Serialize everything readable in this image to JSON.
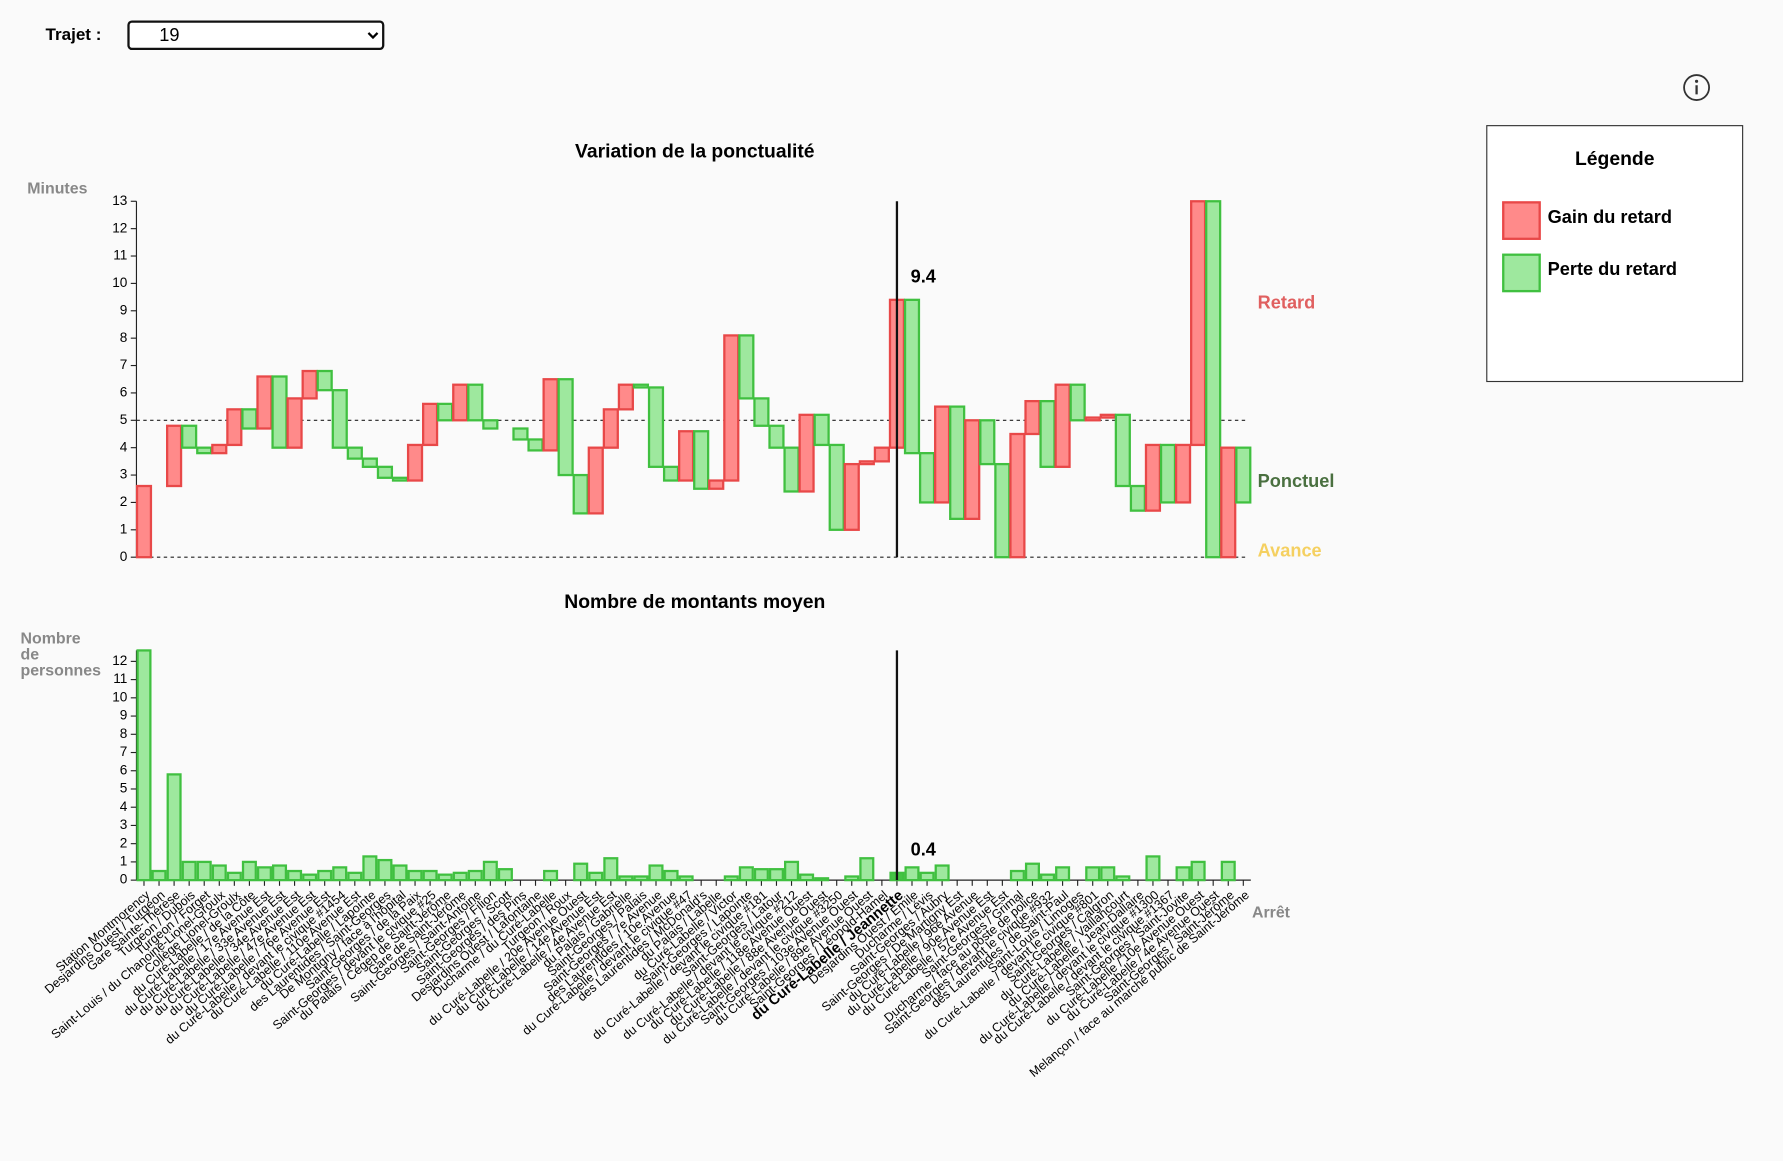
{
  "controls": {
    "label": "Trajet :",
    "selected": "19"
  },
  "legend": {
    "title": "Légende",
    "items": [
      {
        "name": "Gain du retard",
        "color": "#ff8a8a"
      },
      {
        "name": "Perte du retard",
        "color": "#9ee89e"
      }
    ]
  },
  "chart_data": [
    {
      "type": "waterfall",
      "title": "Variation de la ponctualité",
      "y_label": "Minutes",
      "ylim": [
        0,
        13
      ],
      "yticks": [
        0,
        1,
        2,
        3,
        4,
        5,
        6,
        7,
        8,
        9,
        10,
        11,
        12,
        13
      ],
      "reference_lines": [
        0,
        5
      ],
      "highlight_index": 50,
      "zone_labels": [
        {
          "text": "Retard",
          "color": "#e06060"
        },
        {
          "text": "Ponctuel",
          "color": "#4a7040"
        },
        {
          "text": "Avance",
          "color": "#f5d060"
        }
      ],
      "values": [
        2.6,
        2.6,
        4.8,
        4.0,
        3.8,
        4.1,
        5.4,
        4.7,
        6.6,
        4.0,
        5.8,
        6.8,
        6.1,
        4.0,
        3.6,
        3.3,
        2.9,
        2.8,
        4.1,
        5.6,
        5.0,
        6.3,
        5.0,
        4.7,
        4.7,
        4.3,
        3.9,
        6.5,
        3.0,
        1.6,
        4.0,
        5.4,
        6.3,
        6.2,
        3.3,
        2.8,
        4.6,
        2.5,
        2.8,
        8.1,
        5.8,
        4.8,
        4.0,
        2.4,
        5.2,
        4.1,
        1.0,
        3.4,
        3.5,
        4.0,
        9.4,
        3.8,
        2.0,
        5.5,
        1.4,
        5.0,
        3.4,
        0,
        4.5,
        5.7,
        3.3,
        6.3,
        5.0,
        5.1,
        5.2,
        2.6,
        1.7,
        4.1,
        2.0,
        4.1,
        13.0,
        0,
        4.0,
        2.0
      ]
    },
    {
      "type": "bar",
      "title": "Nombre de montants moyen",
      "y_label": "Nombre de personnes",
      "x_label": "Arrêt",
      "ylim": [
        0,
        12.6
      ],
      "yticks": [
        0,
        1,
        2,
        3,
        4,
        5,
        6,
        7,
        8,
        9,
        10,
        11,
        12
      ],
      "highlight_index": 50,
      "color": "#9ee89e",
      "highlight_color": "#44c444",
      "categories": [
        "Station Montmorency",
        "Desjardins Ouest / Turgeon",
        "Gare Sainte-Thérèse",
        "Turgeon / Dubois",
        "Turgeon / Forget",
        "Saint-Louis / du Chanoine-Lionel-Groulx",
        "Collège Lionel-Groulx",
        "du Curé-Labelle / de la Côte",
        "du Curé-Labelle / 17e Avenue Est",
        "du Curé-Labelle / 33e Avenue Est",
        "du Curé-Labelle / 34e Avenue Est",
        "du Curé-Labelle / 47e Avenue Est",
        "du Curé-Labelle / 76e Avenue Est",
        "du Curé-Labelle / devant le civique #1454",
        "du Curé-Labelle / 110e Avenue Est",
        "du Curé-Labelle / Lapointe",
        "des Laurentides / Saint-Georges",
        "De Montigny / face à l'hôpital",
        "Saint-Georges / de la Paix",
        "Saint-Georges / devant le civique #25",
        "du Palais / Cégep de Saint-Jérôme",
        "Gare de Saint-Jérôme",
        "Saint-Georges / Saint-Antoine",
        "Saint-Georges / Filion",
        "Saint-Georges / Scott",
        "Saint-Georges / des Pins",
        "Desjardins Ouest / Lafontaine",
        "Ducharme / du Curé-Labelle",
        "Turgeon / Roux",
        "du Curé-Labelle / 20e Avenue Ouest",
        "du Curé-Labelle / 14e Avenue Est",
        "du Curé-Labelle / 4e Avenue Est",
        "du Palais / Gabrielle",
        "Saint-Georges / Palais",
        "Saint-Georges / 7e Avenue",
        "des Laurentides / 10e Avenue",
        "du Curé-Labelle / devant le civique #47",
        "des Laurentides / McDonald's",
        "du Palais / Labelle",
        "du Curé-Labelle / Victor",
        "Saint-Georges / Lapointe",
        "du Curé-Labelle / devant le civique #181",
        "Saint-Georges / Latour",
        "du Curé-Labelle / devant le civique #212",
        "du Curé-Labelle / 118e Avenue Ouest",
        "du Curé-Labelle / 88e Avenue Ouest",
        "du Curé-Labelle / devant le civique #3250",
        "Saint-Georges / 103e Avenue Ouest",
        "du Curé-Labelle / 89e Avenue Ouest",
        "Saint-Georges / Léopold-Hamel",
        "du Curé-Labelle / Jeannette",
        "Desjardins Ouest / Émile",
        "Ducharme / Lévis",
        "Saint-Georges / Aubry",
        "Saint-Georges / De Martigny Est",
        "du Curé-Labelle / 96e Avenue",
        "du Curé-Labelle / 90e Avenue Est",
        "du Curé-Labelle / 57e Avenue Est",
        "Saint-Georges / Grimal",
        "Ducharme / face au poste de police",
        "Saint-Georges / devant le civique #932",
        "des Laurentides / de Saint-Paul",
        "Saint-Louis / Limoges",
        "du Curé-Labelle / devant le civique #801",
        "Saint-Georges / Calgron",
        "du Curé-Labelle / Vaillancourt",
        "du Curé-Labelle / Jean-Dallaire",
        "du Curé-Labelle / devant le civique #1300",
        "du Curé-Labelle / devant le civique #1367",
        "Saint-Georges / Saint-Jovite",
        "du Curé-Labelle / 10e Avenue Ouest",
        "du Curé-Labelle / 4e Avenue Ouest",
        "Saint-Georges / Saint-Jérôme",
        "Melançon / face au marché public de Saint-Jérôme"
      ],
      "values": [
        12.6,
        0.5,
        5.8,
        1.0,
        1.0,
        0.8,
        0.4,
        1.0,
        0.7,
        0.8,
        0.5,
        0.3,
        0.5,
        0.7,
        0.4,
        1.3,
        1.1,
        0.8,
        0.5,
        0.5,
        0.3,
        0.4,
        0.5,
        1.0,
        0.6,
        0,
        0,
        0.5,
        0,
        0.9,
        0.4,
        1.2,
        0.2,
        0.2,
        0.8,
        0.5,
        0.2,
        0,
        0,
        0.2,
        0.7,
        0.6,
        0.6,
        1.0,
        0.3,
        0.1,
        0,
        0.2,
        1.2,
        0,
        0.4,
        0.7,
        0.4,
        0.8,
        0,
        0,
        0,
        0,
        0.5,
        0.9,
        0.3,
        0.7,
        0,
        0.7,
        0.7,
        0.2,
        0,
        1.3,
        0,
        0.7,
        1.0,
        0,
        1.0,
        0
      ]
    }
  ]
}
